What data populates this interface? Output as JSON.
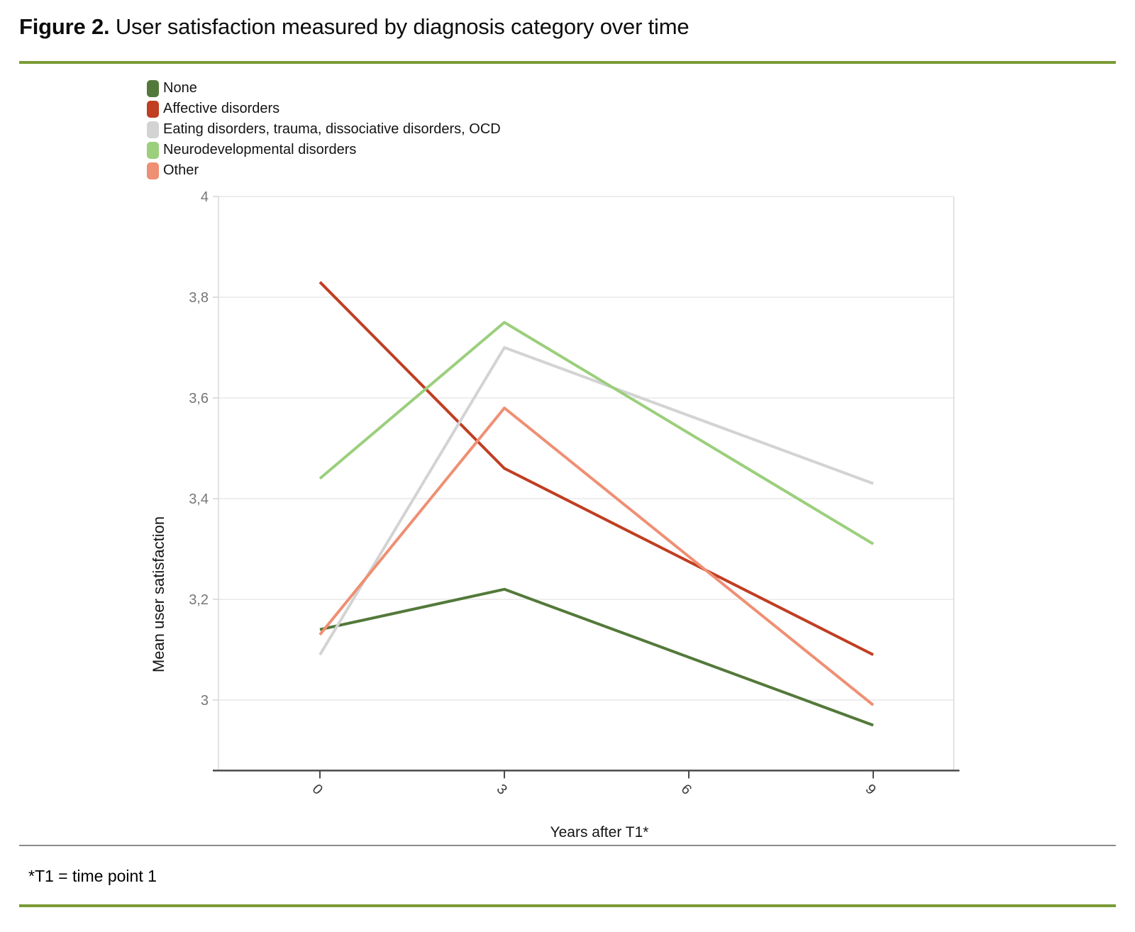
{
  "title": {
    "bold": "Figure 2.",
    "rest": " User satisfaction measured by diagnosis category over time"
  },
  "footnote": "*T1 = time point 1",
  "colors": {
    "accent_rule_green": "#7a9b35",
    "separator_gray": "#8a8a8a",
    "axis_line": "#4a4a4a",
    "grid_line": "#e9e9e9",
    "plot_border": "#d9d9d9",
    "y_tick_label": "#767676",
    "x_tick_label": "#3a3a3a",
    "text": "#141414"
  },
  "chart_data": {
    "type": "line",
    "x": [
      0,
      3,
      9
    ],
    "x_ticks": [
      {
        "v": 0,
        "label": "0"
      },
      {
        "v": 3,
        "label": "3"
      },
      {
        "v": 6,
        "label": "6"
      },
      {
        "v": 9,
        "label": "9"
      }
    ],
    "y_ticks": [
      {
        "v": 4.0,
        "label": "4"
      },
      {
        "v": 3.8,
        "label": "3,8"
      },
      {
        "v": 3.6,
        "label": "3,6"
      },
      {
        "v": 3.4,
        "label": "3,4"
      },
      {
        "v": 3.2,
        "label": "3,2"
      },
      {
        "v": 3.0,
        "label": "3"
      }
    ],
    "xlabel": "Years after T1*",
    "ylabel": "Mean user satisfaction",
    "xlim": [
      -1.65,
      10.31
    ],
    "ylim": [
      2.86,
      4.0
    ],
    "grid": true,
    "legend_position": "top-left",
    "x_tick_rotation_deg": 45,
    "series": [
      {
        "name": "None",
        "color": "#53793a",
        "values": [
          3.14,
          3.22,
          2.95
        ]
      },
      {
        "name": "Affective disorders",
        "color": "#c03e22",
        "values": [
          3.83,
          3.46,
          3.09
        ]
      },
      {
        "name": "Eating disorders, trauma, dissociative disorders, OCD",
        "color": "#d3d3d3",
        "values": [
          3.09,
          3.7,
          3.43
        ]
      },
      {
        "name": "Neurodevelopmental disorders",
        "color": "#9bcf7c",
        "values": [
          3.44,
          3.75,
          3.31
        ]
      },
      {
        "name": "Other",
        "color": "#ef8f73",
        "values": [
          3.13,
          3.58,
          2.99
        ]
      }
    ]
  }
}
